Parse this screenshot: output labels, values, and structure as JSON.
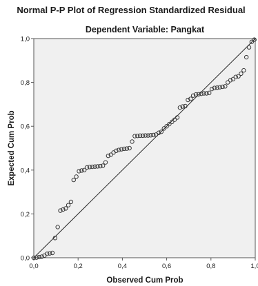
{
  "chart_data": {
    "type": "scatter",
    "title": "Normal P-P Plot of Regression Standardized Residual",
    "subtitle": "Dependent Variable: Pangkat",
    "xlabel": "Observed Cum Prob",
    "ylabel": "Expected Cum Prob",
    "xlim": [
      0,
      1
    ],
    "ylim": [
      0,
      1
    ],
    "x_ticks": [
      "0,0",
      "0,2",
      "0,4",
      "0,6",
      "0,8",
      "1,0"
    ],
    "y_ticks": [
      "0,0",
      "0,2",
      "0,4",
      "0,6",
      "0,8",
      "1,0"
    ],
    "grid": false,
    "reference_line": {
      "from": [
        0,
        0
      ],
      "to": [
        1,
        1
      ]
    },
    "colors": {
      "plot_background": "#f0f0f0",
      "marker": "#3a3a3a",
      "line": "#2a2a2a"
    },
    "points": [
      {
        "x": 0.0,
        "y": 0.0
      },
      {
        "x": 0.012,
        "y": 0.001
      },
      {
        "x": 0.024,
        "y": 0.003
      },
      {
        "x": 0.036,
        "y": 0.005
      },
      {
        "x": 0.048,
        "y": 0.01
      },
      {
        "x": 0.06,
        "y": 0.018
      },
      {
        "x": 0.072,
        "y": 0.02
      },
      {
        "x": 0.084,
        "y": 0.022
      },
      {
        "x": 0.096,
        "y": 0.09
      },
      {
        "x": 0.108,
        "y": 0.14
      },
      {
        "x": 0.12,
        "y": 0.215
      },
      {
        "x": 0.132,
        "y": 0.22
      },
      {
        "x": 0.144,
        "y": 0.225
      },
      {
        "x": 0.156,
        "y": 0.24
      },
      {
        "x": 0.168,
        "y": 0.255
      },
      {
        "x": 0.18,
        "y": 0.355
      },
      {
        "x": 0.192,
        "y": 0.37
      },
      {
        "x": 0.204,
        "y": 0.395
      },
      {
        "x": 0.216,
        "y": 0.398
      },
      {
        "x": 0.228,
        "y": 0.4
      },
      {
        "x": 0.24,
        "y": 0.412
      },
      {
        "x": 0.252,
        "y": 0.414
      },
      {
        "x": 0.264,
        "y": 0.415
      },
      {
        "x": 0.276,
        "y": 0.416
      },
      {
        "x": 0.288,
        "y": 0.417
      },
      {
        "x": 0.3,
        "y": 0.418
      },
      {
        "x": 0.312,
        "y": 0.42
      },
      {
        "x": 0.324,
        "y": 0.435
      },
      {
        "x": 0.336,
        "y": 0.465
      },
      {
        "x": 0.348,
        "y": 0.47
      },
      {
        "x": 0.36,
        "y": 0.48
      },
      {
        "x": 0.372,
        "y": 0.488
      },
      {
        "x": 0.384,
        "y": 0.492
      },
      {
        "x": 0.396,
        "y": 0.495
      },
      {
        "x": 0.408,
        "y": 0.497
      },
      {
        "x": 0.42,
        "y": 0.498
      },
      {
        "x": 0.432,
        "y": 0.5
      },
      {
        "x": 0.444,
        "y": 0.53
      },
      {
        "x": 0.456,
        "y": 0.555
      },
      {
        "x": 0.468,
        "y": 0.556
      },
      {
        "x": 0.48,
        "y": 0.557
      },
      {
        "x": 0.492,
        "y": 0.557
      },
      {
        "x": 0.504,
        "y": 0.558
      },
      {
        "x": 0.516,
        "y": 0.558
      },
      {
        "x": 0.528,
        "y": 0.559
      },
      {
        "x": 0.54,
        "y": 0.56
      },
      {
        "x": 0.552,
        "y": 0.562
      },
      {
        "x": 0.564,
        "y": 0.57
      },
      {
        "x": 0.576,
        "y": 0.575
      },
      {
        "x": 0.588,
        "y": 0.59
      },
      {
        "x": 0.6,
        "y": 0.6
      },
      {
        "x": 0.612,
        "y": 0.61
      },
      {
        "x": 0.624,
        "y": 0.62
      },
      {
        "x": 0.636,
        "y": 0.63
      },
      {
        "x": 0.648,
        "y": 0.64
      },
      {
        "x": 0.66,
        "y": 0.685
      },
      {
        "x": 0.672,
        "y": 0.69
      },
      {
        "x": 0.684,
        "y": 0.692
      },
      {
        "x": 0.696,
        "y": 0.72
      },
      {
        "x": 0.708,
        "y": 0.725
      },
      {
        "x": 0.72,
        "y": 0.74
      },
      {
        "x": 0.732,
        "y": 0.745
      },
      {
        "x": 0.744,
        "y": 0.746
      },
      {
        "x": 0.756,
        "y": 0.748
      },
      {
        "x": 0.768,
        "y": 0.75
      },
      {
        "x": 0.78,
        "y": 0.75
      },
      {
        "x": 0.792,
        "y": 0.752
      },
      {
        "x": 0.804,
        "y": 0.77
      },
      {
        "x": 0.816,
        "y": 0.775
      },
      {
        "x": 0.828,
        "y": 0.776
      },
      {
        "x": 0.84,
        "y": 0.778
      },
      {
        "x": 0.852,
        "y": 0.78
      },
      {
        "x": 0.864,
        "y": 0.782
      },
      {
        "x": 0.876,
        "y": 0.8
      },
      {
        "x": 0.888,
        "y": 0.81
      },
      {
        "x": 0.9,
        "y": 0.815
      },
      {
        "x": 0.912,
        "y": 0.825
      },
      {
        "x": 0.924,
        "y": 0.828
      },
      {
        "x": 0.936,
        "y": 0.84
      },
      {
        "x": 0.948,
        "y": 0.855
      },
      {
        "x": 0.96,
        "y": 0.915
      },
      {
        "x": 0.972,
        "y": 0.96
      },
      {
        "x": 0.984,
        "y": 0.985
      },
      {
        "x": 0.996,
        "y": 0.995
      }
    ]
  }
}
